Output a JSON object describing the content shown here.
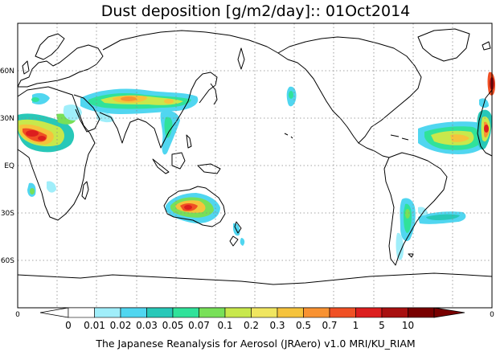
{
  "title": "Dust deposition [g/m2/day]:: 01Oct2014",
  "footer": "The Japanese Reanalysis for Aerosol (JRAero) v1.0 MRI/KU_RIAM",
  "map": {
    "lat_labels": [
      "60N",
      "30N",
      "EQ",
      "30S",
      "60S"
    ],
    "x_axis_labels": {
      "left": "0",
      "right": "0"
    },
    "lon_range": [
      0,
      360
    ],
    "lat_range": [
      -90,
      90
    ],
    "grid": "dotted 30-degree graticule"
  },
  "colorbar": {
    "labels": [
      "0",
      "0.01",
      "0.02",
      "0.03",
      "0.05",
      "0.07",
      "0.1",
      "0.2",
      "0.3",
      "0.5",
      "0.7",
      "1",
      "5",
      "10"
    ],
    "colors": [
      "#ffffff",
      "#a0eefa",
      "#50d6f0",
      "#28c8b8",
      "#30e29a",
      "#78e058",
      "#c8e84c",
      "#f0e660",
      "#f5c33c",
      "#f89232",
      "#f05024",
      "#dc1e1e",
      "#a81010",
      "#780000"
    ],
    "under_color": "#ffffff",
    "over_color": "#780000"
  },
  "dust_regions": [
    {
      "id": "sahara-arabia",
      "color_index": 11
    },
    {
      "id": "taklimakan-gobi",
      "color_index": 9
    },
    {
      "id": "australia",
      "color_index": 11
    },
    {
      "id": "atlantic-plume",
      "color_index": 9
    },
    {
      "id": "patagonia",
      "color_index": 6
    },
    {
      "id": "south-america-plume",
      "color_index": 4
    }
  ]
}
